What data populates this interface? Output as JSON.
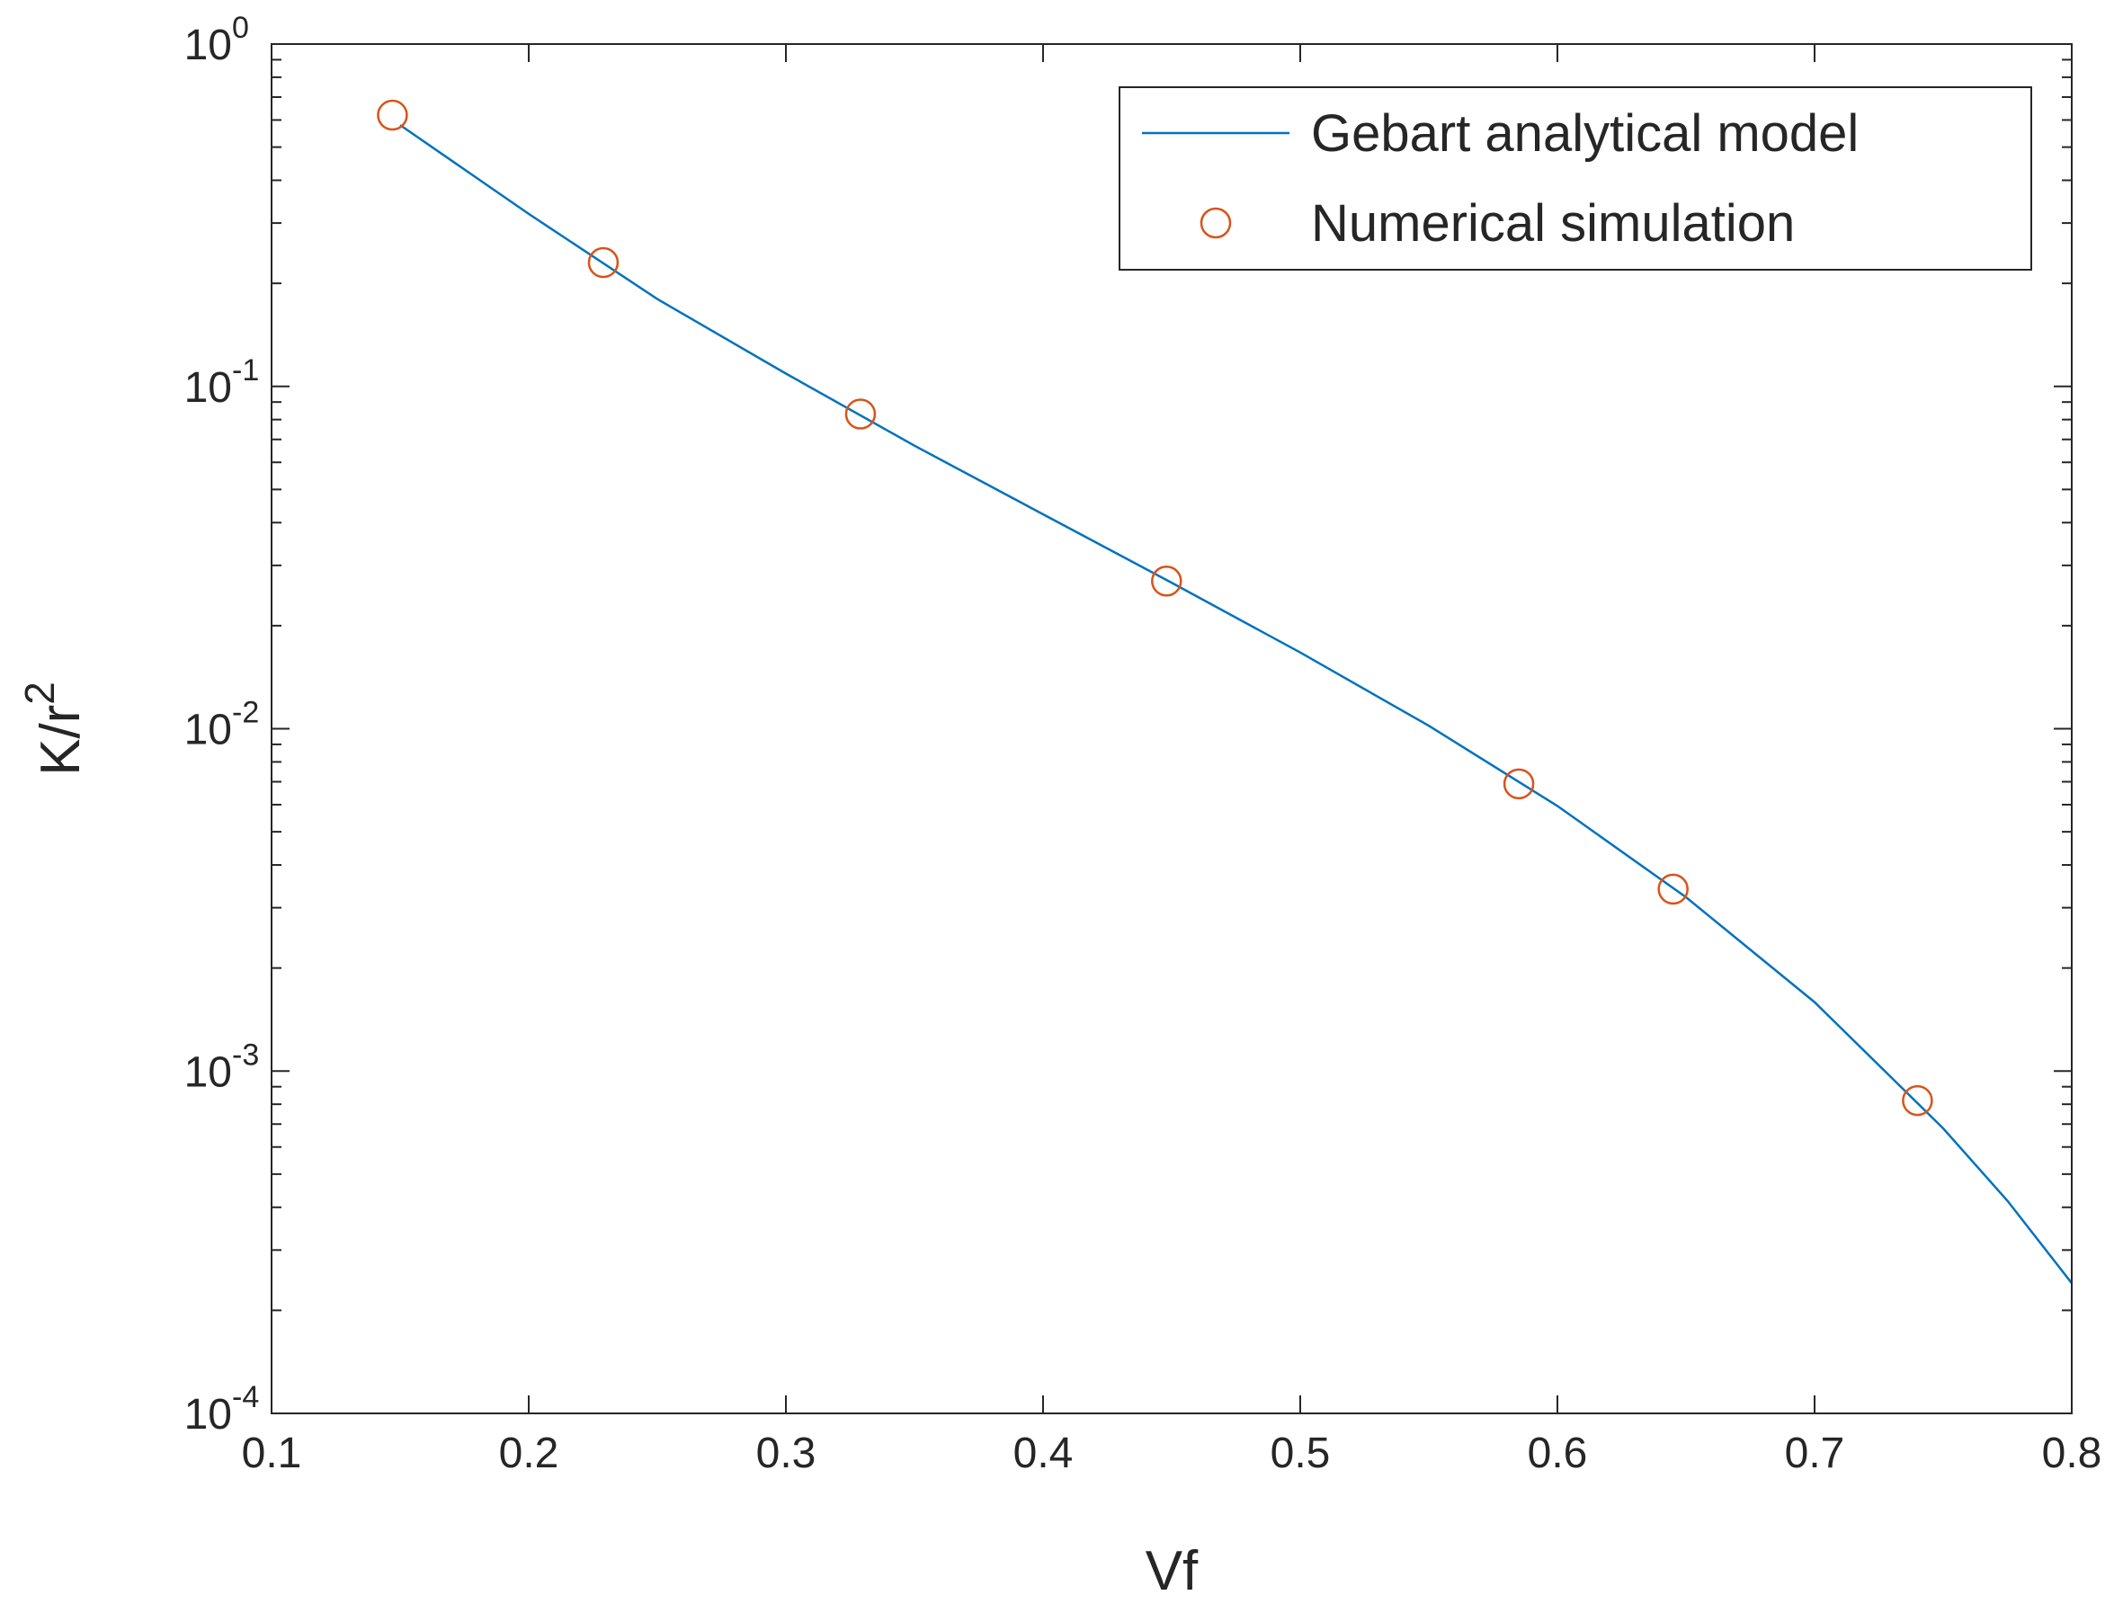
{
  "chart_data": {
    "type": "line",
    "title": "",
    "xlabel": "Vf",
    "ylabel": {
      "base": "K/r",
      "exponent": "2"
    },
    "xlim": [
      0.1,
      0.8
    ],
    "ylim": [
      0.0001,
      1
    ],
    "yscale": "log",
    "grid": false,
    "legend_position": "top-right",
    "x_ticks": [
      0.1,
      0.2,
      0.3,
      0.4,
      0.5,
      0.6,
      0.7,
      0.8
    ],
    "x_tick_labels": [
      "0.1",
      "0.2",
      "0.3",
      "0.4",
      "0.5",
      "0.6",
      "0.7",
      "0.8"
    ],
    "y_ticks": [
      {
        "value": 1,
        "base": "10",
        "exponent": "0"
      },
      {
        "value": 0.1,
        "base": "10",
        "exponent": "-1"
      },
      {
        "value": 0.01,
        "base": "10",
        "exponent": "-2"
      },
      {
        "value": 0.001,
        "base": "10",
        "exponent": "-3"
      },
      {
        "value": 0.0001,
        "base": "10",
        "exponent": "-4"
      }
    ],
    "series": [
      {
        "name": "Gebart analytical model",
        "kind": "line",
        "color": "#0072BD",
        "x": [
          0.15,
          0.2,
          0.25,
          0.3,
          0.35,
          0.4,
          0.45,
          0.5,
          0.55,
          0.6,
          0.65,
          0.7,
          0.75,
          0.775,
          0.8
        ],
        "y": [
          0.58,
          0.319,
          0.18,
          0.109,
          0.0671,
          0.0423,
          0.0267,
          0.0167,
          0.0102,
          0.00595,
          0.00322,
          0.00159,
          0.00068,
          0.000418,
          0.00024
        ]
      },
      {
        "name": "Numerical simulation",
        "kind": "scatter",
        "marker": "circle-open",
        "color": "#D95319",
        "x": [
          0.147,
          0.229,
          0.329,
          0.448,
          0.585,
          0.645,
          0.74
        ],
        "y": [
          0.62,
          0.23,
          0.083,
          0.027,
          0.0069,
          0.0034,
          0.00082
        ]
      }
    ]
  }
}
